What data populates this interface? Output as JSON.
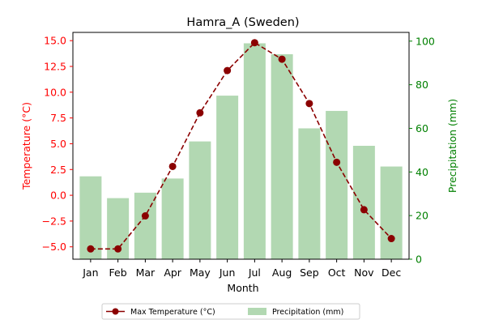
{
  "chart_data": {
    "type": "bar+line",
    "title": "Hamra_A (Sweden)",
    "xlabel": "Month",
    "categories": [
      "Jan",
      "Feb",
      "Mar",
      "Apr",
      "May",
      "Jun",
      "Jul",
      "Aug",
      "Sep",
      "Oct",
      "Nov",
      "Dec"
    ],
    "left_axis": {
      "label": "Temperature (°C)",
      "color": "#ff0000",
      "ylim": [
        -6.2,
        15.8
      ],
      "ticks": [
        -5.0,
        -2.5,
        0.0,
        2.5,
        5.0,
        7.5,
        10.0,
        12.5,
        15.0
      ],
      "tick_labels": [
        "−5.0",
        "−2.5",
        "0.0",
        "2.5",
        "5.0",
        "7.5",
        "10.0",
        "12.5",
        "15.0"
      ]
    },
    "right_axis": {
      "label": "Precipitation (mm)",
      "color": "#008000",
      "ylim": [
        0,
        104
      ],
      "ticks": [
        0,
        20,
        40,
        60,
        80,
        100
      ],
      "tick_labels": [
        "0",
        "20",
        "40",
        "60",
        "80",
        "100"
      ]
    },
    "series": [
      {
        "name": "Max Temperature (°C)",
        "kind": "line",
        "axis": "left",
        "color": "#8b0000",
        "values": [
          -5.2,
          -5.2,
          -2.0,
          2.8,
          8.0,
          12.1,
          14.8,
          13.2,
          8.9,
          3.2,
          -1.4,
          -4.2
        ]
      },
      {
        "name": "Precipitation (mm)",
        "kind": "bar",
        "axis": "right",
        "color": "#b2d8b2",
        "values": [
          38,
          28,
          30.5,
          37,
          54,
          75,
          99,
          94,
          60,
          68,
          52,
          42.5
        ]
      }
    ],
    "legend": {
      "placement": "bottom-center"
    },
    "grid": false
  }
}
